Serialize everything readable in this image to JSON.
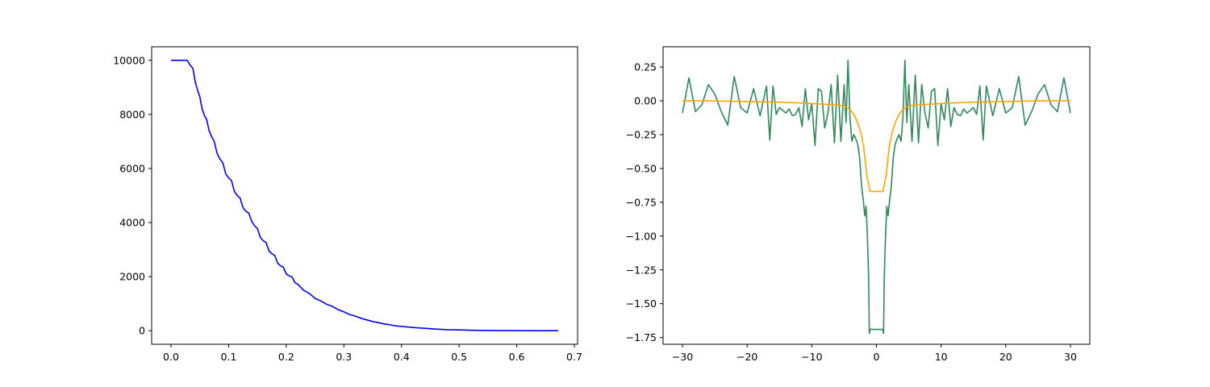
{
  "chart_data": [
    {
      "type": "line",
      "title": "",
      "xlabel": "",
      "ylabel": "",
      "xlim": [
        -0.0336,
        0.7056
      ],
      "ylim": [
        -500,
        10500
      ],
      "grid": false,
      "xticks": [
        "0.0",
        "0.1",
        "0.2",
        "0.3",
        "0.4",
        "0.5",
        "0.6",
        "0.7"
      ],
      "yticks": [
        "0",
        "2000",
        "4000",
        "6000",
        "8000",
        "10000"
      ],
      "series": [
        {
          "color": "#0000ff",
          "x": [
            0.0,
            0.028,
            0.033,
            0.038,
            0.042,
            0.046,
            0.05,
            0.054,
            0.058,
            0.062,
            0.066,
            0.07,
            0.075,
            0.08,
            0.085,
            0.09,
            0.095,
            0.1,
            0.105,
            0.11,
            0.115,
            0.12,
            0.125,
            0.13,
            0.135,
            0.14,
            0.145,
            0.15,
            0.155,
            0.16,
            0.165,
            0.17,
            0.175,
            0.18,
            0.185,
            0.19,
            0.195,
            0.2,
            0.205,
            0.21,
            0.215,
            0.22,
            0.23,
            0.24,
            0.25,
            0.26,
            0.27,
            0.28,
            0.29,
            0.3,
            0.31,
            0.32,
            0.33,
            0.34,
            0.35,
            0.36,
            0.37,
            0.38,
            0.39,
            0.4,
            0.42,
            0.44,
            0.46,
            0.48,
            0.5,
            0.52,
            0.54,
            0.56,
            0.6,
            0.64,
            0.672
          ],
          "y": [
            10000,
            10000,
            9830,
            9700,
            9200,
            8900,
            8650,
            8200,
            7950,
            7800,
            7400,
            7200,
            7000,
            6550,
            6350,
            6200,
            5800,
            5650,
            5550,
            5150,
            5000,
            4900,
            4550,
            4420,
            4350,
            4050,
            3880,
            3780,
            3450,
            3330,
            3260,
            2950,
            2850,
            2780,
            2500,
            2400,
            2350,
            2100,
            2030,
            1990,
            1780,
            1720,
            1500,
            1380,
            1200,
            1100,
            980,
            900,
            780,
            700,
            600,
            540,
            460,
            400,
            340,
            300,
            250,
            220,
            180,
            160,
            120,
            90,
            60,
            40,
            30,
            20,
            12,
            8,
            4,
            2,
            0
          ]
        }
      ]
    },
    {
      "type": "line",
      "title": "",
      "xlabel": "",
      "ylabel": "",
      "xlim": [
        -33.0,
        33.0
      ],
      "ylim": [
        -1.8,
        0.4
      ],
      "grid": false,
      "xticks": [
        "−30",
        "−20",
        "−10",
        "0",
        "10",
        "20",
        "30"
      ],
      "yticks": [
        "0.25",
        "0.00",
        "−0.25",
        "−0.50",
        "−0.75",
        "−1.00",
        "−1.25",
        "−1.50",
        "−1.75"
      ],
      "series": [
        {
          "color": "#2e8b57",
          "x": [
            -30.0,
            -29.0,
            -28.0,
            -27.0,
            -26.0,
            -25.0,
            -24.0,
            -23.0,
            -22.0,
            -21.0,
            -20.0,
            -19.0,
            -18.0,
            -17.0,
            -16.5,
            -16.0,
            -15.5,
            -15.0,
            -14.0,
            -13.5,
            -13.0,
            -12.5,
            -12.0,
            -11.5,
            -11.0,
            -10.5,
            -10.0,
            -9.5,
            -9.0,
            -8.5,
            -8.0,
            -7.5,
            -7.0,
            -6.5,
            -6.0,
            -5.5,
            -5.0,
            -4.7,
            -4.4,
            -4.1,
            -3.8,
            -3.5,
            -3.2,
            -2.9,
            -2.6,
            -2.3,
            -2.0,
            -1.8,
            -1.6,
            -1.4,
            -1.2,
            -1.1,
            -1.0,
            1.0,
            1.1,
            1.2,
            1.4,
            1.6,
            1.8,
            2.0,
            2.3,
            2.6,
            2.9,
            3.2,
            3.5,
            3.8,
            4.1,
            4.4,
            4.7,
            5.0,
            5.5,
            6.0,
            6.5,
            7.0,
            7.5,
            8.0,
            8.5,
            9.0,
            9.5,
            10.0,
            10.5,
            11.0,
            11.5,
            12.0,
            12.5,
            13.0,
            13.5,
            14.0,
            15.0,
            15.5,
            16.0,
            16.5,
            17.0,
            18.0,
            19.0,
            20.0,
            21.0,
            22.0,
            23.0,
            24.0,
            25.0,
            26.0,
            27.0,
            28.0,
            29.0,
            30.0
          ],
          "y": [
            -0.09,
            0.17,
            -0.08,
            -0.03,
            0.12,
            0.05,
            -0.08,
            -0.18,
            0.18,
            -0.05,
            -0.09,
            0.09,
            -0.11,
            0.11,
            -0.29,
            0.11,
            -0.1,
            -0.05,
            -0.09,
            -0.06,
            -0.11,
            -0.1,
            -0.05,
            -0.19,
            0.09,
            -0.14,
            -0.02,
            -0.33,
            0.09,
            0.07,
            -0.2,
            -0.09,
            0.12,
            -0.31,
            0.19,
            -0.3,
            0.12,
            -0.16,
            0.3,
            -0.12,
            -0.3,
            -0.25,
            -0.28,
            -0.32,
            -0.42,
            -0.63,
            -0.75,
            -0.85,
            -0.78,
            -1.0,
            -1.32,
            -1.72,
            -1.69,
            -1.69,
            -1.72,
            -1.32,
            -1.0,
            -0.78,
            -0.85,
            -0.75,
            -0.63,
            -0.42,
            -0.32,
            -0.28,
            -0.25,
            -0.3,
            -0.12,
            0.3,
            -0.16,
            0.12,
            -0.3,
            0.19,
            -0.31,
            0.12,
            -0.09,
            -0.2,
            0.07,
            0.09,
            -0.33,
            -0.02,
            -0.14,
            0.09,
            -0.19,
            -0.05,
            -0.1,
            -0.11,
            -0.06,
            -0.09,
            -0.05,
            -0.1,
            0.11,
            -0.29,
            0.11,
            -0.11,
            0.09,
            -0.09,
            -0.05,
            0.18,
            -0.18,
            -0.08,
            0.05,
            0.12,
            -0.03,
            -0.08,
            0.17,
            -0.09
          ]
        },
        {
          "color": "#ffa500",
          "x": [
            -30.0,
            -25.0,
            -20.0,
            -15.0,
            -12.0,
            -10.0,
            -8.0,
            -6.0,
            -5.0,
            -4.5,
            -4.0,
            -3.5,
            -3.0,
            -2.5,
            -2.0,
            -1.5,
            -1.0,
            1.0,
            1.5,
            2.0,
            2.5,
            3.0,
            3.5,
            4.0,
            4.5,
            5.0,
            6.0,
            8.0,
            10.0,
            12.0,
            15.0,
            20.0,
            25.0,
            30.0
          ],
          "y": [
            0.0,
            0.0,
            -0.005,
            -0.01,
            -0.015,
            -0.02,
            -0.025,
            -0.03,
            -0.04,
            -0.05,
            -0.07,
            -0.1,
            -0.15,
            -0.22,
            -0.33,
            -0.55,
            -0.67,
            -0.67,
            -0.55,
            -0.33,
            -0.22,
            -0.15,
            -0.1,
            -0.07,
            -0.05,
            -0.04,
            -0.03,
            -0.025,
            -0.02,
            -0.015,
            -0.01,
            -0.005,
            0.0,
            0.0
          ]
        }
      ]
    }
  ]
}
